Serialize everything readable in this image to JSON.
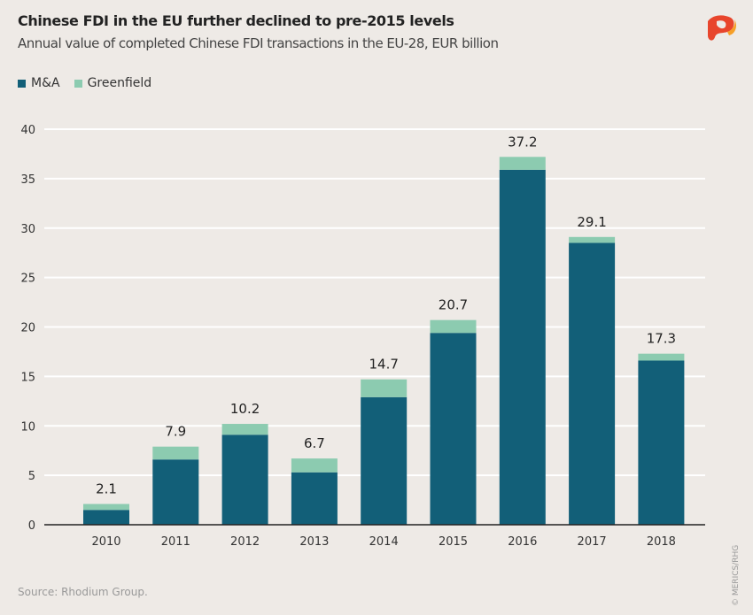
{
  "chart_data": {
    "type": "bar",
    "stacked": true,
    "title": "Chinese FDI in the EU further declined to pre-2015 levels",
    "subtitle": "Annual value of completed Chinese FDI transactions in the EU-28, EUR billion",
    "categories": [
      "2010",
      "2011",
      "2012",
      "2013",
      "2014",
      "2015",
      "2016",
      "2017",
      "2018"
    ],
    "series": [
      {
        "name": "M&A",
        "color": "#125f78",
        "values": [
          1.5,
          6.6,
          9.1,
          5.3,
          12.9,
          19.4,
          35.9,
          28.5,
          16.6
        ]
      },
      {
        "name": "Greenfield",
        "color": "#8ccbb0",
        "values": [
          0.6,
          1.3,
          1.1,
          1.4,
          1.8,
          1.3,
          1.3,
          0.6,
          0.7
        ]
      }
    ],
    "totals": [
      "2.1",
      "7.9",
      "10.2",
      "6.7",
      "14.7",
      "20.7",
      "37.2",
      "29.1",
      "17.3"
    ],
    "yticks": [
      "0",
      "5",
      "10",
      "15",
      "20",
      "25",
      "30",
      "35",
      "40"
    ],
    "ylim": [
      0,
      40
    ],
    "grid": true,
    "legend": "top-left"
  },
  "source": "Source: Rhodium Group.",
  "credit": "© MERICS/RHG"
}
